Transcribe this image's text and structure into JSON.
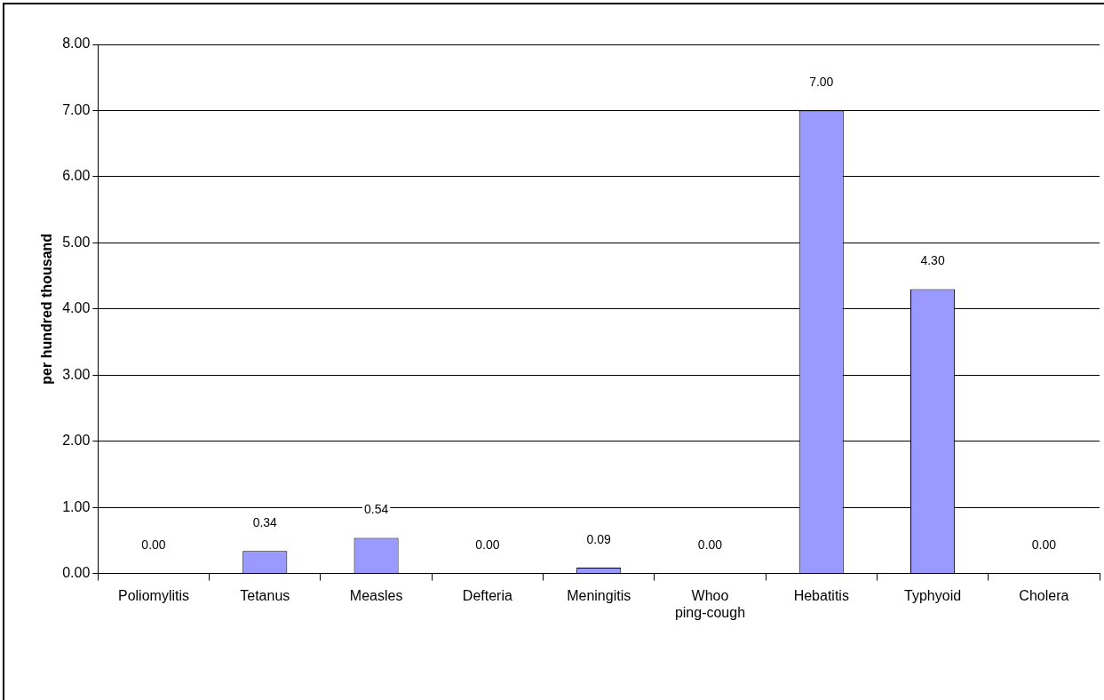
{
  "chart_data": {
    "type": "bar",
    "ylabel": "per hundred thousand",
    "categories": [
      "Poliomylitis",
      "Tetanus",
      "Measles",
      "Defteria",
      "Meningitis",
      "Whoo\nping-cough",
      "Hebatitis",
      "Typhyoid",
      "Cholera"
    ],
    "values": [
      0,
      0.34,
      0.54,
      0,
      0.09,
      0,
      7.0,
      4.3,
      0
    ],
    "value_labels": [
      "0.00",
      "0.34",
      "0.54",
      "0.00",
      "0.09",
      "0.00",
      "7.00",
      "4.30",
      "0.00"
    ],
    "color": "#9999ff",
    "ylim": [
      0,
      8
    ],
    "yticks": [
      {
        "value": 0,
        "label": "0.00"
      },
      {
        "value": 1,
        "label": "1.00"
      },
      {
        "value": 2,
        "label": "2.00"
      },
      {
        "value": 3,
        "label": "3.00"
      },
      {
        "value": 4,
        "label": "4.00"
      },
      {
        "value": 5,
        "label": "5.00"
      },
      {
        "value": 6,
        "label": "6.00"
      },
      {
        "value": 7,
        "label": "7.00"
      },
      {
        "value": 8,
        "label": "8.00"
      }
    ],
    "grid": "y",
    "legend": false
  }
}
